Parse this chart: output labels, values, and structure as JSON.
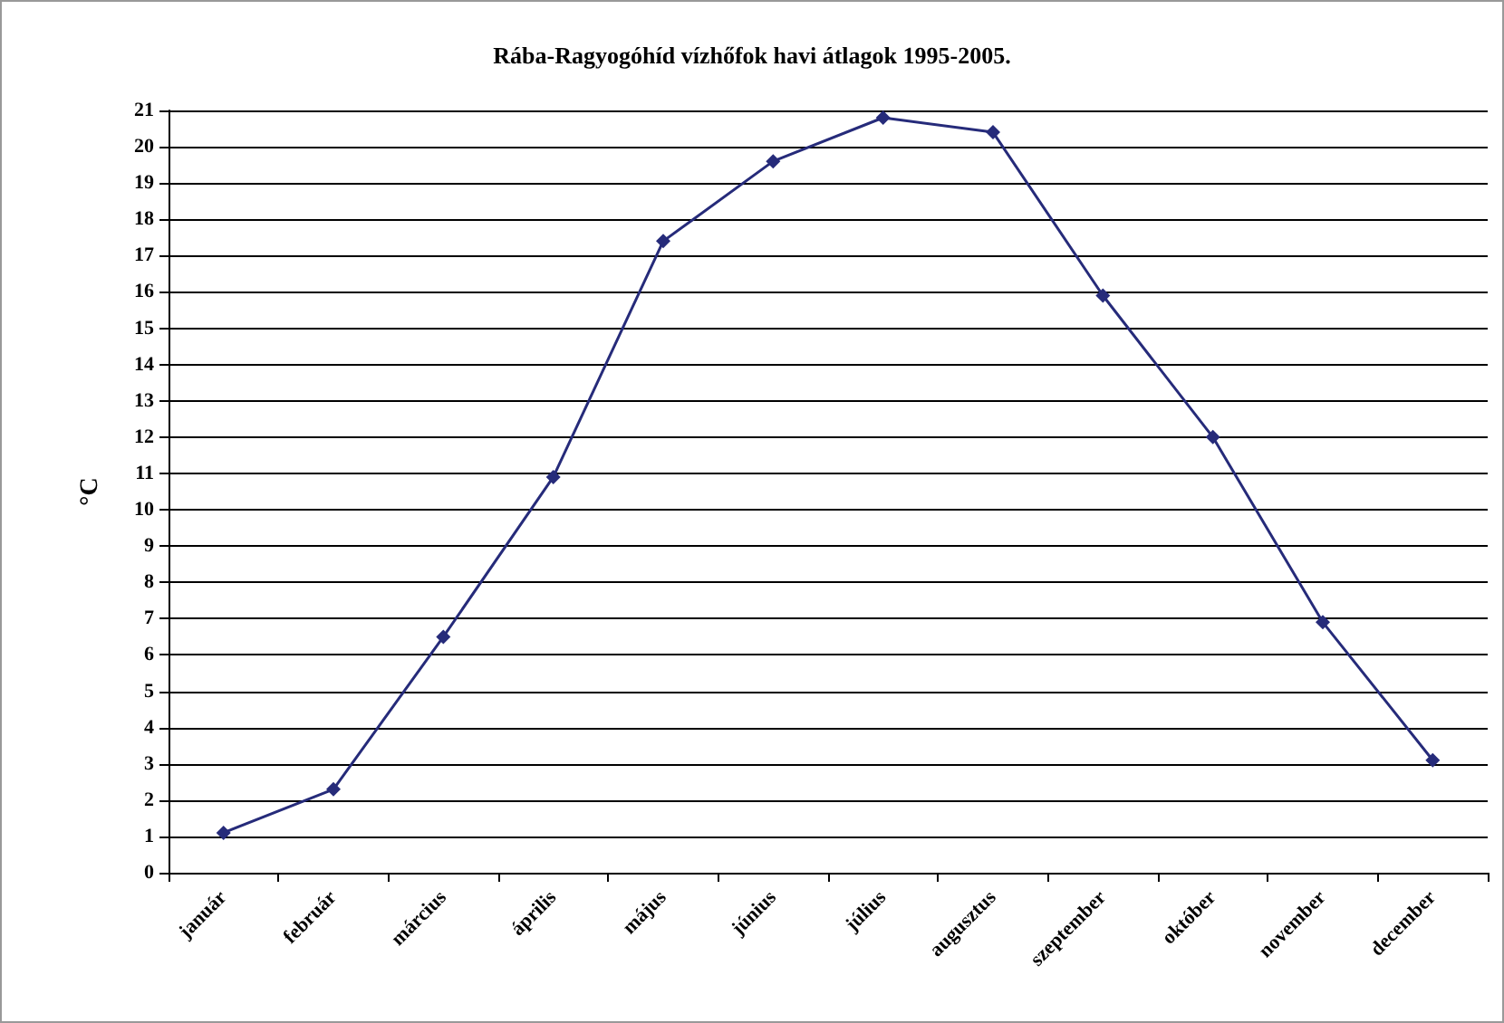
{
  "chart_data": {
    "type": "line",
    "title": "Rába-Ragyogóhíd vízhőfok havi átlagok 1995-2005.",
    "ylabel": "°C",
    "categories": [
      "január",
      "február",
      "március",
      "április",
      "május",
      "június",
      "július",
      "augusztus",
      "szeptember",
      "október",
      "november",
      "december"
    ],
    "series": [
      {
        "color": "#262b7a",
        "values": [
          1.1,
          2.3,
          6.5,
          10.9,
          17.4,
          19.6,
          20.8,
          20.4,
          15.9,
          12.0,
          6.9,
          3.1
        ]
      }
    ],
    "ylim": [
      0,
      21
    ],
    "yticks": [
      0,
      1,
      2,
      3,
      4,
      5,
      6,
      7,
      8,
      9,
      10,
      11,
      12,
      13,
      14,
      15,
      16,
      17,
      18,
      19,
      20,
      21
    ],
    "grid": "y",
    "marker": "diamond",
    "line_style": "solid"
  }
}
